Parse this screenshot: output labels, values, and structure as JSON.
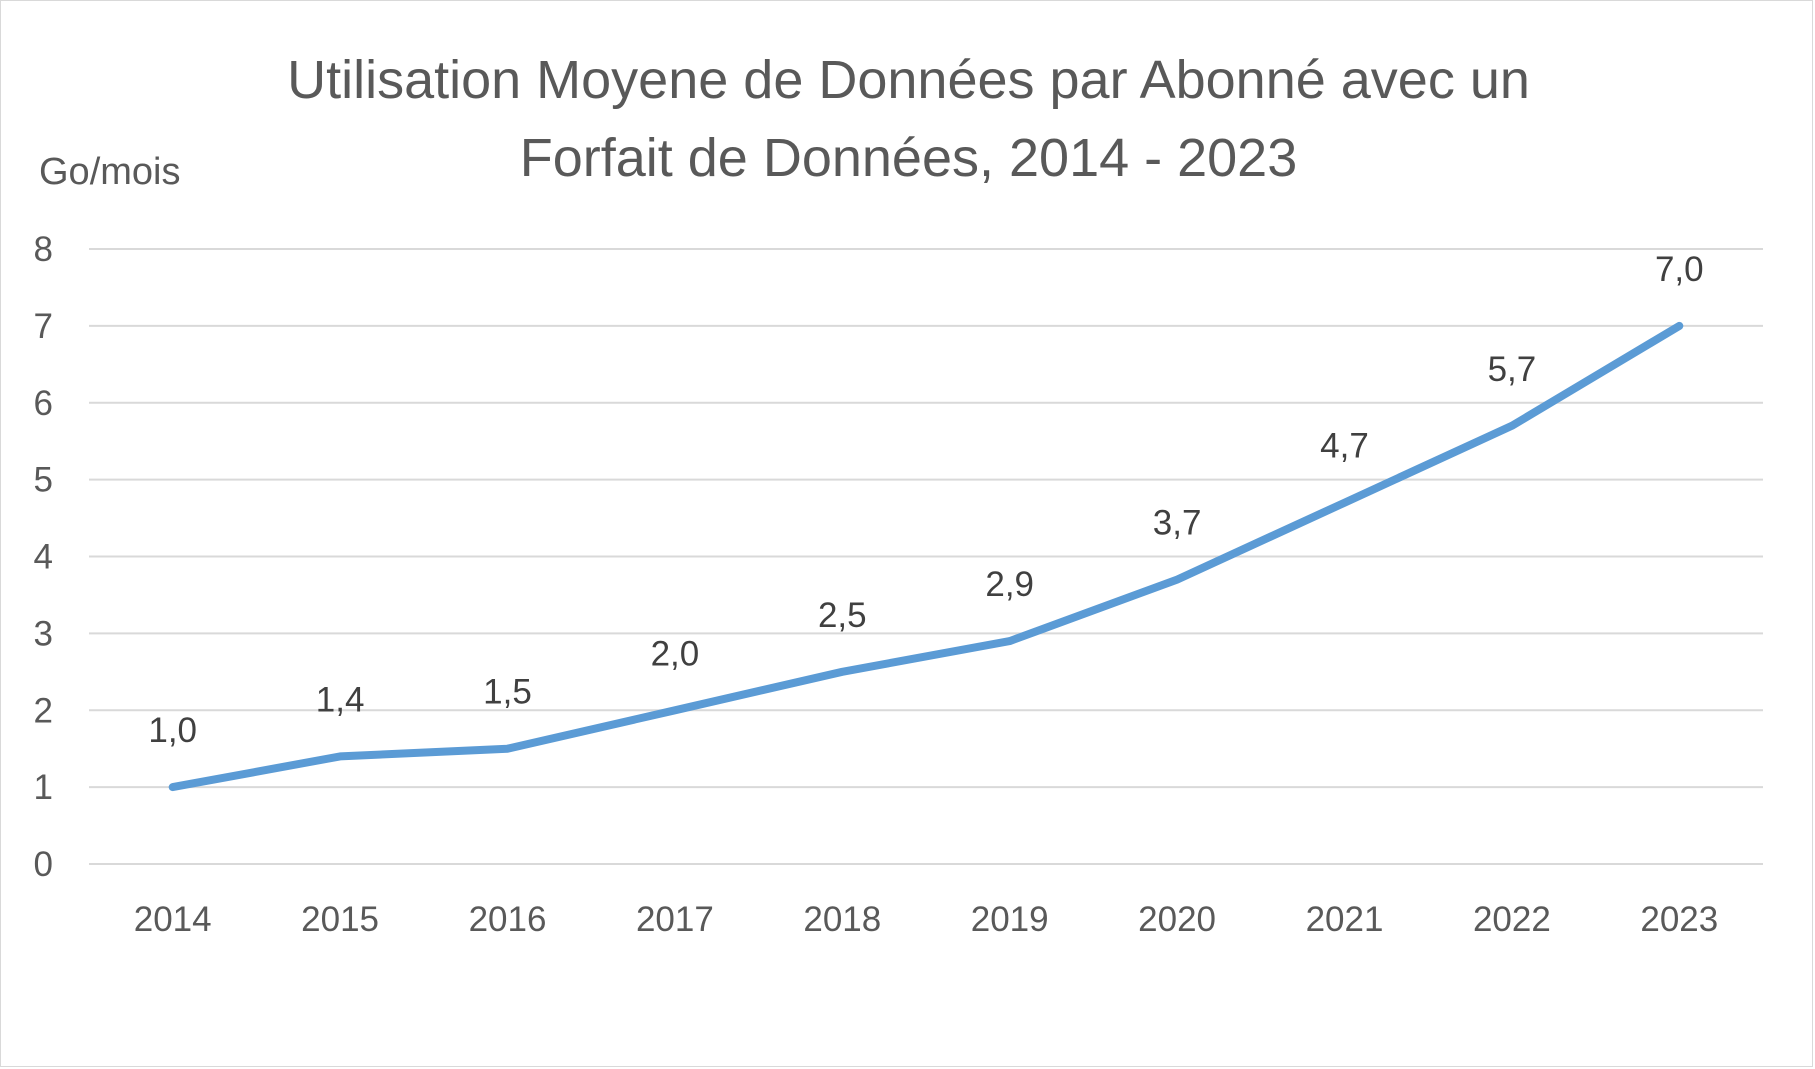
{
  "chart_data": {
    "type": "line",
    "title_lines": [
      "Utilisation Moyene de Données par Abonné avec un",
      "Forfait de Données, 2014 - 2023"
    ],
    "ylabel": "Go/mois",
    "xlabel": "",
    "categories": [
      "2014",
      "2015",
      "2016",
      "2017",
      "2018",
      "2019",
      "2020",
      "2021",
      "2022",
      "2023"
    ],
    "values": [
      1.0,
      1.4,
      1.5,
      2.0,
      2.5,
      2.9,
      3.7,
      4.7,
      5.7,
      7.0
    ],
    "data_labels": [
      "1,0",
      "1,4",
      "1,5",
      "2,0",
      "2,5",
      "2,9",
      "3,7",
      "4,7",
      "5,7",
      "7,0"
    ],
    "y_ticks": [
      "0",
      "1",
      "2",
      "3",
      "4",
      "5",
      "6",
      "7",
      "8"
    ],
    "ylim": [
      0,
      8
    ],
    "grid": true,
    "legend": "none",
    "line_color": "#5b9bd5",
    "grid_color": "#d9d9d9",
    "text_color": "#595959"
  }
}
